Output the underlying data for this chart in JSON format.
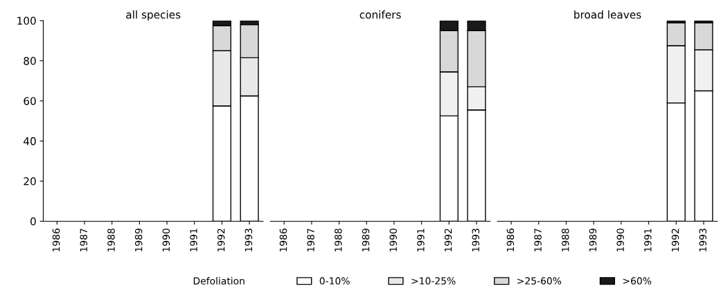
{
  "chart_data": [
    {
      "type": "bar",
      "title": "all species",
      "stacked": true,
      "categories": [
        "1986",
        "1987",
        "1988",
        "1989",
        "1990",
        "1991",
        "1992",
        "1993"
      ],
      "ylim": [
        0,
        100
      ],
      "yticks": [
        0,
        20,
        40,
        60,
        80,
        100
      ],
      "legend": "bottom",
      "legend_title": "Defoliation",
      "series": [
        {
          "name": "0-10%",
          "color": "#ffffff",
          "values": [
            null,
            null,
            null,
            null,
            null,
            null,
            57.5,
            62.5
          ]
        },
        {
          "name": ">10-25%",
          "color": "#e8e8e8",
          "values": [
            null,
            null,
            null,
            null,
            null,
            null,
            27.5,
            19
          ]
        },
        {
          "name": ">25-60%",
          "color": "#d8d8d8",
          "values": [
            null,
            null,
            null,
            null,
            null,
            null,
            12.5,
            16.5
          ]
        },
        {
          "name": ">60%",
          "color": "#1a1a1a",
          "values": [
            null,
            null,
            null,
            null,
            null,
            null,
            2.5,
            2
          ]
        }
      ]
    },
    {
      "type": "bar",
      "title": "conifers",
      "stacked": true,
      "categories": [
        "1986",
        "1987",
        "1988",
        "1989",
        "1990",
        "1991",
        "1992",
        "1993"
      ],
      "ylim": [
        0,
        100
      ],
      "tick_labels": "x",
      "series": [
        {
          "color": "#ffffff",
          "values": [
            null,
            null,
            null,
            null,
            null,
            null,
            52.5,
            55.5
          ]
        },
        {
          "color": "#f0f0f0",
          "values": [
            null,
            null,
            null,
            null,
            null,
            null,
            22,
            11.5
          ]
        },
        {
          "color": "#d8d8d8",
          "values": [
            null,
            null,
            null,
            null,
            null,
            null,
            20.5,
            28
          ]
        },
        {
          "color": "#1a1a1a",
          "values": [
            null,
            null,
            null,
            null,
            null,
            null,
            5,
            5
          ]
        }
      ]
    },
    {
      "type": "bar",
      "title": "broad leaves",
      "stacked": true,
      "categories": [
        "1986",
        "1987",
        "1988",
        "1989",
        "1990",
        "1991",
        "1992",
        "1993"
      ],
      "ylim": [
        0,
        100
      ],
      "tick_labels": "x",
      "series": [
        {
          "color": "#ffffff",
          "values": [
            null,
            null,
            null,
            null,
            null,
            null,
            59,
            65
          ]
        },
        {
          "color": "#f0f0f0",
          "values": [
            null,
            null,
            null,
            null,
            null,
            null,
            28.5,
            20.5
          ]
        },
        {
          "color": "#d8d8d8",
          "values": [
            null,
            null,
            null,
            null,
            null,
            null,
            11.5,
            13.5
          ]
        },
        {
          "color": "#1a1a1a",
          "values": [
            null,
            null,
            null,
            null,
            null,
            null,
            1,
            1
          ]
        }
      ]
    }
  ]
}
